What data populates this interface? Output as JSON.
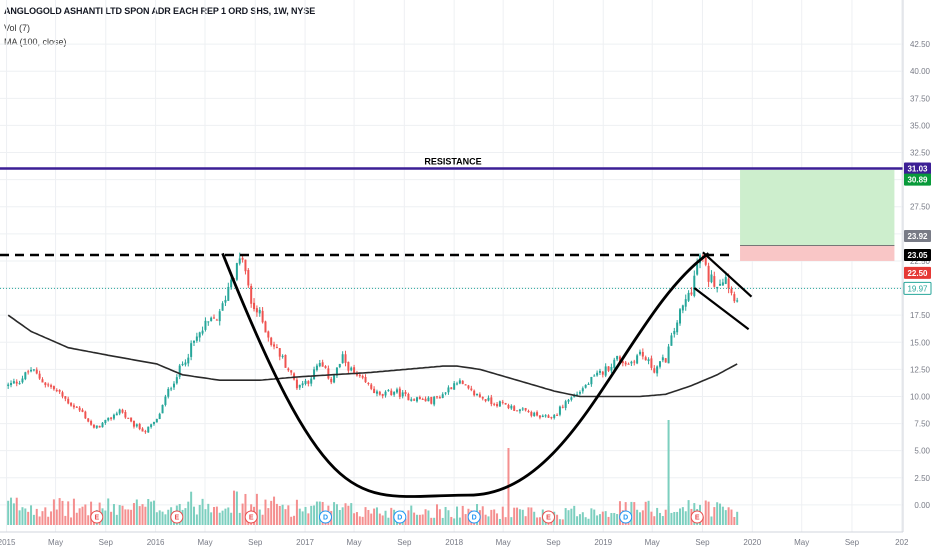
{
  "header": {
    "title": "ANGLOGOLD ASHANTI LTD SPON ADR EACH REP 1 ORD SHS, 1W, NYSE",
    "vol_label": "Vol (7)",
    "ma_label": "MA (100, close)"
  },
  "chart_data": {
    "type": "candlestick",
    "symbol": "ANGLOGOLD ASHANTI LTD SPON ADR EACH REP 1 ORD SHS",
    "interval": "1W",
    "exchange": "NYSE",
    "ylim": [
      -2.5,
      45
    ],
    "y_ticks": [
      0,
      2.5,
      5,
      7.5,
      10,
      12.5,
      15,
      17.5,
      20,
      22.5,
      25,
      27.5,
      30,
      32.5,
      35,
      37.5,
      40,
      42.5
    ],
    "y_tick_labels": [
      "0.00",
      "2.50",
      "5.00",
      "7.50",
      "10.00",
      "12.50",
      "15.00",
      "17.50",
      "20.00",
      "22.50",
      "25.00",
      "27.50",
      "30.00",
      "32.50",
      "35.00",
      "37.50",
      "40.00",
      "42.50"
    ],
    "x_tick_labels": [
      "2015",
      "May",
      "Sep",
      "2016",
      "May",
      "Sep",
      "2017",
      "May",
      "Sep",
      "2018",
      "May",
      "Sep",
      "2019",
      "May",
      "Sep",
      "2020",
      "May",
      "Sep",
      "202"
    ],
    "price_path": [
      [
        "2015-01-05",
        11.0
      ],
      [
        "2015-02-02",
        11.5
      ],
      [
        "2015-03-02",
        12.5
      ],
      [
        "2015-04-06",
        11.2
      ],
      [
        "2015-05-04",
        10.5
      ],
      [
        "2015-06-01",
        9.5
      ],
      [
        "2015-07-06",
        8.5
      ],
      [
        "2015-08-03",
        7.0
      ],
      [
        "2015-09-07",
        7.8
      ],
      [
        "2015-10-05",
        8.8
      ],
      [
        "2015-11-02",
        7.5
      ],
      [
        "2015-12-07",
        6.8
      ],
      [
        "2016-01-04",
        7.8
      ],
      [
        "2016-02-01",
        10.5
      ],
      [
        "2016-03-07",
        13.0
      ],
      [
        "2016-04-04",
        15.0
      ],
      [
        "2016-05-02",
        16.5
      ],
      [
        "2016-06-06",
        17.5
      ],
      [
        "2016-07-04",
        21.0
      ],
      [
        "2016-08-01",
        22.8
      ],
      [
        "2016-08-22",
        18.5
      ],
      [
        "2016-09-12",
        17.5
      ],
      [
        "2016-10-10",
        15.0
      ],
      [
        "2016-11-07",
        13.5
      ],
      [
        "2016-12-12",
        11.0
      ],
      [
        "2017-01-09",
        11.5
      ],
      [
        "2017-02-06",
        13.0
      ],
      [
        "2017-03-06",
        11.5
      ],
      [
        "2017-04-03",
        13.5
      ],
      [
        "2017-05-01",
        12.0
      ],
      [
        "2017-06-05",
        11.0
      ],
      [
        "2017-07-03",
        10.0
      ],
      [
        "2017-08-07",
        10.5
      ],
      [
        "2017-09-04",
        10.0
      ],
      [
        "2017-10-02",
        9.8
      ],
      [
        "2017-11-06",
        9.6
      ],
      [
        "2017-12-04",
        10.2
      ],
      [
        "2018-01-08",
        11.5
      ],
      [
        "2018-02-05",
        10.5
      ],
      [
        "2018-03-05",
        10.0
      ],
      [
        "2018-04-02",
        9.5
      ],
      [
        "2018-05-07",
        9.2
      ],
      [
        "2018-06-04",
        8.8
      ],
      [
        "2018-07-02",
        8.5
      ],
      [
        "2018-08-06",
        8.0
      ],
      [
        "2018-09-03",
        8.2
      ],
      [
        "2018-10-01",
        9.5
      ],
      [
        "2018-11-05",
        10.5
      ],
      [
        "2018-12-03",
        11.5
      ],
      [
        "2019-01-07",
        12.5
      ],
      [
        "2019-02-04",
        13.5
      ],
      [
        "2019-03-04",
        13.0
      ],
      [
        "2019-04-01",
        14.0
      ],
      [
        "2019-05-06",
        12.5
      ],
      [
        "2019-06-03",
        13.5
      ],
      [
        "2019-07-01",
        17.0
      ],
      [
        "2019-08-05",
        20.0
      ],
      [
        "2019-08-26",
        23.0
      ],
      [
        "2019-09-16",
        21.0
      ],
      [
        "2019-10-07",
        20.5
      ],
      [
        "2019-10-28",
        21.2
      ],
      [
        "2019-11-11",
        19.5
      ],
      [
        "2019-11-25",
        19.2
      ]
    ],
    "volume_scale_max": 7.5,
    "volume_path": [
      [
        "2015-01-05",
        1.8
      ],
      [
        "2015-06-01",
        1.5
      ],
      [
        "2016-01-04",
        1.6
      ],
      [
        "2016-06-06",
        2.2
      ],
      [
        "2016-09-12",
        1.8
      ],
      [
        "2017-01-09",
        1.5
      ],
      [
        "2017-06-05",
        1.2
      ],
      [
        "2018-01-08",
        1.3
      ],
      [
        "2018-05-07",
        1.1
      ],
      [
        "2018-09-03",
        1.0
      ],
      [
        "2019-01-07",
        1.4
      ],
      [
        "2019-06-03",
        1.5
      ],
      [
        "2019-09-16",
        1.6
      ],
      [
        "2019-11-25",
        1.2
      ]
    ],
    "volume_spikes": [
      {
        "date": "2018-05-14",
        "value": 5.5,
        "color": "#f48f8f"
      },
      {
        "date": "2019-06-10",
        "value": 7.5,
        "color": "#7ccfbf"
      }
    ],
    "ma_100": [
      [
        "2015-01-05",
        17.5
      ],
      [
        "2015-03-02",
        16.0
      ],
      [
        "2015-06-01",
        14.5
      ],
      [
        "2015-09-07",
        13.8
      ],
      [
        "2016-01-04",
        13.0
      ],
      [
        "2016-03-07",
        12.0
      ],
      [
        "2016-06-06",
        11.5
      ],
      [
        "2016-09-12",
        11.5
      ],
      [
        "2016-12-12",
        11.8
      ],
      [
        "2017-03-06",
        12.0
      ],
      [
        "2017-06-05",
        12.2
      ],
      [
        "2017-09-04",
        12.5
      ],
      [
        "2017-12-04",
        12.8
      ],
      [
        "2018-01-08",
        12.8
      ],
      [
        "2018-03-05",
        12.5
      ],
      [
        "2018-06-04",
        11.5
      ],
      [
        "2018-09-03",
        10.5
      ],
      [
        "2018-11-05",
        10.0
      ],
      [
        "2019-01-07",
        10.0
      ],
      [
        "2019-04-01",
        10.0
      ],
      [
        "2019-06-03",
        10.2
      ],
      [
        "2019-08-05",
        11.0
      ],
      [
        "2019-10-07",
        12.0
      ],
      [
        "2019-11-25",
        13.0
      ]
    ],
    "resistance": {
      "value": 31.03,
      "label": "RESISTANCE",
      "tag": "31.03",
      "color": "#3c1f95"
    },
    "neckline": {
      "value": 23.05,
      "tag": "23.05",
      "style": "dashed",
      "color": "#000000"
    },
    "current_price_line": {
      "value": 19.97,
      "tag": "19.97",
      "color": "#26a69a"
    },
    "position": {
      "target_tag": "30.89",
      "target_color": "#089a3a",
      "entry_tag": "23.92",
      "stop_tag": "22.50",
      "stop_color": "#e53935",
      "profit_zone": [
        23.92,
        30.89
      ],
      "loss_zone": [
        22.5,
        23.92
      ],
      "start": "2019-12-02",
      "end": "2020-12-14"
    },
    "cup": {
      "left": [
        "2016-06-13",
        23.2
      ],
      "bottom": [
        "2018-02-05",
        0.9
      ],
      "right": [
        "2019-09-16",
        23.2
      ]
    },
    "flag_lines": [
      {
        "from": [
          "2019-09-02",
          23.3
        ],
        "to": [
          "2019-12-30",
          19.2
        ]
      },
      {
        "from": [
          "2019-08-12",
          20.0
        ],
        "to": [
          "2019-12-23",
          16.2
        ]
      }
    ],
    "event_markers": [
      {
        "date": "2015-08-10",
        "label": "E",
        "color": "#e84c4c"
      },
      {
        "date": "2016-02-22",
        "label": "E",
        "color": "#e84c4c"
      },
      {
        "date": "2016-08-22",
        "label": "E",
        "color": "#e84c4c"
      },
      {
        "date": "2017-02-20",
        "label": "D",
        "color": "#2196f3"
      },
      {
        "date": "2017-08-21",
        "label": "D",
        "color": "#2196f3"
      },
      {
        "date": "2018-02-19",
        "label": "D",
        "color": "#2196f3"
      },
      {
        "date": "2018-08-20",
        "label": "E",
        "color": "#e84c4c"
      },
      {
        "date": "2019-02-25",
        "label": "D",
        "color": "#2196f3"
      },
      {
        "date": "2019-08-19",
        "label": "E",
        "color": "#e84c4c"
      }
    ],
    "colors": {
      "up": "#26a69a",
      "down": "#ef5350",
      "volume_up": "#7ccfbf",
      "volume_down": "#f48f8f",
      "ma": "#2a2a2a",
      "profit_zone": "#cdeecd",
      "loss_zone": "#f9c6c6",
      "grid": "#eef0f3"
    }
  }
}
